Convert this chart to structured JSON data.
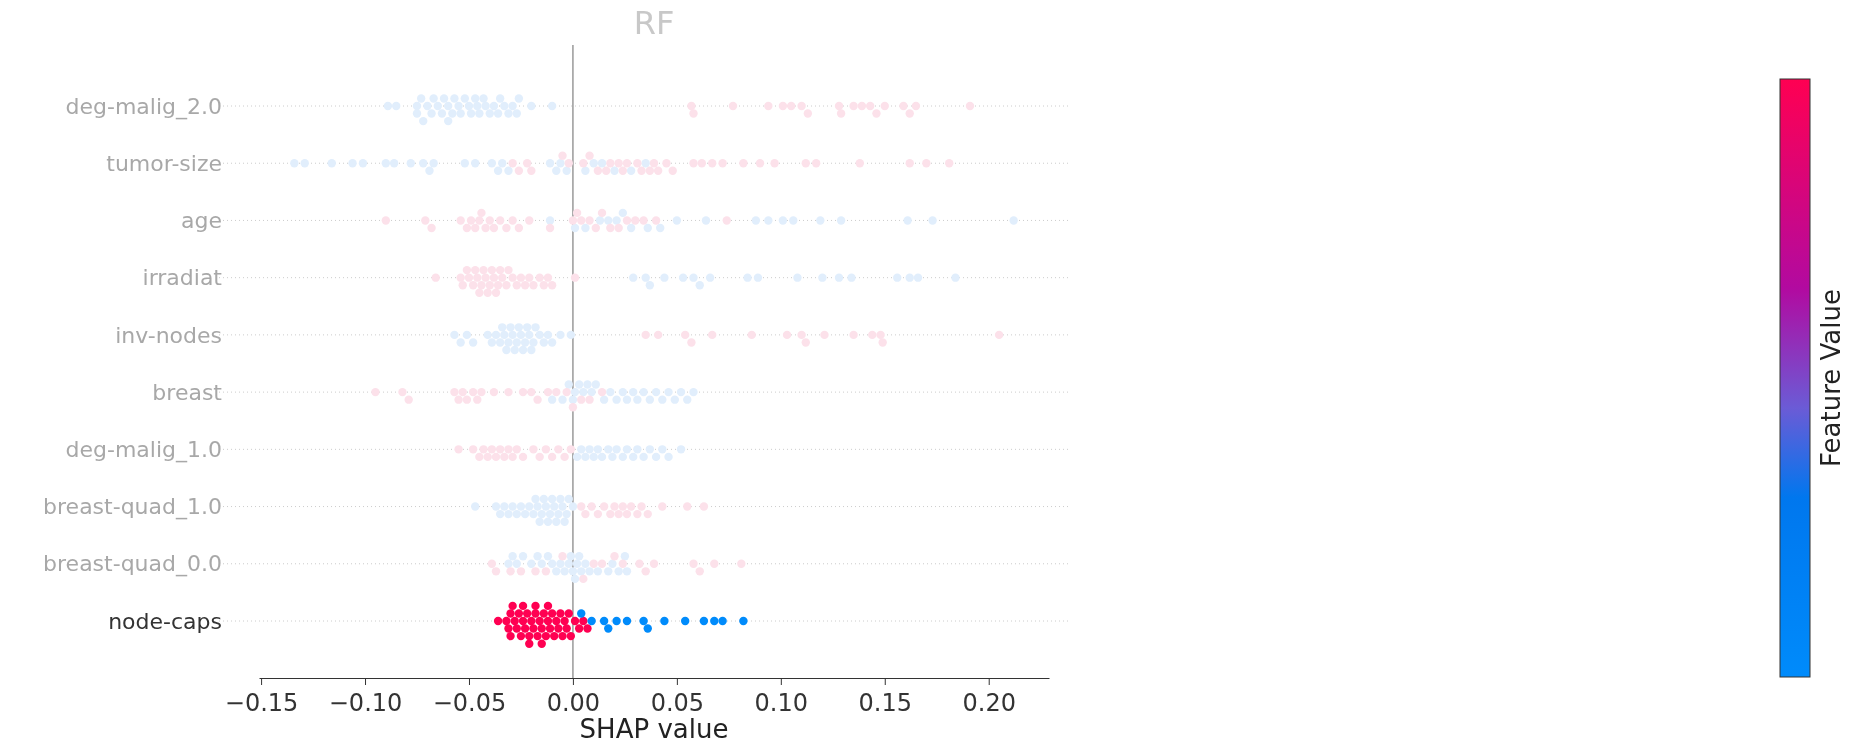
{
  "chart_data": {
    "type": "scatter",
    "orientation": "horizontal",
    "title": "RF",
    "xlabel": "SHAP value",
    "clabel": "Feature Value",
    "categories": [
      "deg-malig_2.0",
      "tumor-size",
      "age",
      "irradiat",
      "inv-nodes",
      "breast",
      "deg-malig_1.0",
      "breast-quad_1.0",
      "breast-quad_0.0",
      "node-caps"
    ],
    "xlim": [
      -0.151,
      0.229
    ],
    "xticks": [
      {
        "value": -0.15,
        "label": "−0.15"
      },
      {
        "value": -0.1,
        "label": "−0.10"
      },
      {
        "value": -0.05,
        "label": "−0.05"
      },
      {
        "value": 0,
        "label": "0.00"
      },
      {
        "value": 0.05,
        "label": "0.05"
      },
      {
        "value": 0.1,
        "label": "0.10"
      },
      {
        "value": 0.15,
        "label": "0.15"
      },
      {
        "value": 0.2,
        "label": "0.20"
      }
    ],
    "grid": "y",
    "marker": "circle",
    "ref_lines": [
      {
        "axis": "x",
        "value": 0,
        "color": "#999999"
      }
    ],
    "series": [
      {
        "color": "#e1eefc",
        "x": [
          "deg-malig_2.0",
          "deg-malig_2.0",
          "deg-malig_2.0",
          "deg-malig_2.0",
          "deg-malig_2.0",
          "deg-malig_2.0",
          "deg-malig_2.0",
          "deg-malig_2.0",
          "deg-malig_2.0",
          "deg-malig_2.0",
          "deg-malig_2.0",
          "deg-malig_2.0",
          "deg-malig_2.0",
          "deg-malig_2.0",
          "deg-malig_2.0",
          "deg-malig_2.0",
          "deg-malig_2.0",
          "deg-malig_2.0",
          "deg-malig_2.0",
          "deg-malig_2.0",
          "deg-malig_2.0",
          "deg-malig_2.0",
          "deg-malig_2.0",
          "deg-malig_2.0",
          "deg-malig_2.0",
          "deg-malig_2.0",
          "deg-malig_2.0",
          "deg-malig_2.0",
          "deg-malig_2.0",
          "deg-malig_2.0",
          "deg-malig_2.0",
          "deg-malig_2.0",
          "deg-malig_2.0",
          "deg-malig_2.0",
          "deg-malig_2.0",
          "deg-malig_2.0",
          "deg-malig_2.0"
        ],
        "values": [
          -0.089,
          -0.085,
          -0.075,
          -0.075,
          -0.073,
          -0.072,
          -0.07,
          -0.068,
          -0.067,
          -0.065,
          -0.063,
          -0.062,
          -0.06,
          -0.06,
          -0.058,
          -0.057,
          -0.055,
          -0.054,
          -0.052,
          -0.05,
          -0.049,
          -0.047,
          -0.046,
          -0.045,
          -0.043,
          -0.042,
          -0.04,
          -0.038,
          -0.036,
          -0.035,
          -0.033,
          -0.031,
          -0.029,
          -0.027,
          -0.026,
          -0.02,
          -0.01
        ]
      },
      {
        "color": "#fce1ea",
        "x": [
          "deg-malig_2.0",
          "deg-malig_2.0",
          "deg-malig_2.0",
          "deg-malig_2.0",
          "deg-malig_2.0",
          "deg-malig_2.0",
          "deg-malig_2.0",
          "deg-malig_2.0",
          "deg-malig_2.0",
          "deg-malig_2.0",
          "deg-malig_2.0",
          "deg-malig_2.0",
          "deg-malig_2.0",
          "deg-malig_2.0",
          "deg-malig_2.0",
          "deg-malig_2.0",
          "deg-malig_2.0",
          "deg-malig_2.0",
          "deg-malig_2.0"
        ],
        "values": [
          0.057,
          0.058,
          0.077,
          0.094,
          0.101,
          0.105,
          0.11,
          0.113,
          0.128,
          0.129,
          0.135,
          0.139,
          0.143,
          0.146,
          0.15,
          0.159,
          0.162,
          0.165,
          0.191
        ]
      },
      {
        "color": "#e1eefc",
        "x": [
          "tumor-size",
          "tumor-size",
          "tumor-size",
          "tumor-size",
          "tumor-size",
          "tumor-size",
          "tumor-size",
          "tumor-size",
          "tumor-size",
          "tumor-size",
          "tumor-size",
          "tumor-size",
          "tumor-size",
          "tumor-size",
          "tumor-size",
          "tumor-size",
          "tumor-size",
          "tumor-size",
          "tumor-size",
          "tumor-size",
          "tumor-size",
          "tumor-size",
          "tumor-size",
          "tumor-size",
          "tumor-size",
          "tumor-size",
          "tumor-size"
        ],
        "values": [
          -0.134,
          -0.129,
          -0.116,
          -0.106,
          -0.101,
          -0.09,
          -0.086,
          -0.078,
          -0.072,
          -0.069,
          -0.067,
          -0.052,
          -0.047,
          -0.039,
          -0.036,
          -0.034,
          -0.031,
          -0.011,
          -0.008,
          -0.006,
          -0.003,
          0.006,
          0.01,
          0.014,
          0.02,
          0.028,
          0.035
        ]
      },
      {
        "color": "#fce1ea",
        "x": [
          "tumor-size",
          "tumor-size",
          "tumor-size",
          "tumor-size",
          "tumor-size",
          "tumor-size",
          "tumor-size",
          "tumor-size",
          "tumor-size",
          "tumor-size",
          "tumor-size",
          "tumor-size",
          "tumor-size",
          "tumor-size",
          "tumor-size",
          "tumor-size",
          "tumor-size",
          "tumor-size",
          "tumor-size",
          "tumor-size",
          "tumor-size",
          "tumor-size",
          "tumor-size",
          "tumor-size",
          "tumor-size",
          "tumor-size",
          "tumor-size",
          "tumor-size",
          "tumor-size",
          "tumor-size",
          "tumor-size",
          "tumor-size",
          "tumor-size",
          "tumor-size"
        ],
        "values": [
          -0.029,
          -0.026,
          -0.022,
          -0.02,
          -0.005,
          -0.002,
          0.005,
          0.008,
          0.012,
          0.016,
          0.018,
          0.022,
          0.024,
          0.026,
          0.031,
          0.033,
          0.037,
          0.039,
          0.041,
          0.045,
          0.048,
          0.058,
          0.062,
          0.067,
          0.072,
          0.082,
          0.09,
          0.097,
          0.112,
          0.117,
          0.138,
          0.162,
          0.17,
          0.181
        ]
      },
      {
        "color": "#e1eefc",
        "x": [
          "age",
          "age",
          "age",
          "age",
          "age",
          "age",
          "age",
          "age",
          "age",
          "age",
          "age",
          "age",
          "age",
          "age",
          "age",
          "age",
          "age",
          "age",
          "age",
          "age",
          "age"
        ],
        "values": [
          -0.011,
          0.001,
          0.006,
          0.013,
          0.017,
          0.021,
          0.024,
          0.028,
          0.036,
          0.042,
          0.05,
          0.064,
          0.088,
          0.094,
          0.101,
          0.106,
          0.119,
          0.129,
          0.161,
          0.173,
          0.212
        ]
      },
      {
        "color": "#fce1ea",
        "x": [
          "age",
          "age",
          "age",
          "age",
          "age",
          "age",
          "age",
          "age",
          "age",
          "age",
          "age",
          "age",
          "age",
          "age",
          "age",
          "age",
          "age",
          "age",
          "age",
          "age",
          "age",
          "age",
          "age",
          "age",
          "age",
          "age",
          "age",
          "age",
          "age",
          "age",
          "age"
        ],
        "values": [
          -0.09,
          -0.071,
          -0.068,
          -0.054,
          -0.051,
          -0.049,
          -0.047,
          -0.045,
          -0.044,
          -0.042,
          -0.04,
          -0.038,
          -0.035,
          -0.032,
          -0.029,
          -0.026,
          -0.021,
          -0.011,
          0.0,
          0.002,
          0.004,
          0.008,
          0.011,
          0.014,
          0.018,
          0.022,
          0.026,
          0.03,
          0.034,
          0.04,
          0.074
        ]
      },
      {
        "color": "#e1eefc",
        "x": [
          "irradiat",
          "irradiat",
          "irradiat",
          "irradiat",
          "irradiat",
          "irradiat",
          "irradiat",
          "irradiat",
          "irradiat",
          "irradiat",
          "irradiat",
          "irradiat",
          "irradiat",
          "irradiat",
          "irradiat",
          "irradiat",
          "irradiat",
          "irradiat"
        ],
        "values": [
          0.029,
          0.035,
          0.037,
          0.044,
          0.053,
          0.058,
          0.061,
          0.066,
          0.084,
          0.089,
          0.108,
          0.12,
          0.128,
          0.134,
          0.156,
          0.162,
          0.166,
          0.184
        ]
      },
      {
        "color": "#fce1ea",
        "x": [
          "irradiat",
          "irradiat",
          "irradiat",
          "irradiat",
          "irradiat",
          "irradiat",
          "irradiat",
          "irradiat",
          "irradiat",
          "irradiat",
          "irradiat",
          "irradiat",
          "irradiat",
          "irradiat",
          "irradiat",
          "irradiat",
          "irradiat",
          "irradiat",
          "irradiat",
          "irradiat",
          "irradiat",
          "irradiat",
          "irradiat",
          "irradiat",
          "irradiat",
          "irradiat",
          "irradiat",
          "irradiat",
          "irradiat",
          "irradiat",
          "irradiat",
          "irradiat",
          "irradiat"
        ],
        "values": [
          -0.066,
          -0.054,
          -0.053,
          -0.051,
          -0.05,
          -0.048,
          -0.047,
          -0.046,
          -0.045,
          -0.044,
          -0.043,
          -0.042,
          -0.041,
          -0.04,
          -0.039,
          -0.038,
          -0.037,
          -0.036,
          -0.035,
          -0.034,
          -0.032,
          -0.031,
          -0.029,
          -0.027,
          -0.025,
          -0.023,
          -0.021,
          -0.019,
          -0.016,
          -0.014,
          -0.012,
          -0.01,
          0.001
        ]
      },
      {
        "color": "#e1eefc",
        "x": [
          "inv-nodes",
          "inv-nodes",
          "inv-nodes",
          "inv-nodes",
          "inv-nodes",
          "inv-nodes",
          "inv-nodes",
          "inv-nodes",
          "inv-nodes",
          "inv-nodes",
          "inv-nodes",
          "inv-nodes",
          "inv-nodes",
          "inv-nodes",
          "inv-nodes",
          "inv-nodes",
          "inv-nodes",
          "inv-nodes",
          "inv-nodes",
          "inv-nodes",
          "inv-nodes",
          "inv-nodes",
          "inv-nodes",
          "inv-nodes",
          "inv-nodes",
          "inv-nodes",
          "inv-nodes",
          "inv-nodes",
          "inv-nodes",
          "inv-nodes",
          "inv-nodes"
        ],
        "values": [
          -0.057,
          -0.054,
          -0.051,
          -0.048,
          -0.041,
          -0.039,
          -0.037,
          -0.035,
          -0.034,
          -0.033,
          -0.032,
          -0.031,
          -0.03,
          -0.029,
          -0.028,
          -0.027,
          -0.026,
          -0.025,
          -0.024,
          -0.023,
          -0.022,
          -0.021,
          -0.02,
          -0.019,
          -0.018,
          -0.016,
          -0.014,
          -0.012,
          -0.01,
          -0.006,
          -0.001
        ]
      },
      {
        "color": "#fce1ea",
        "x": [
          "inv-nodes",
          "inv-nodes",
          "inv-nodes",
          "inv-nodes",
          "inv-nodes",
          "inv-nodes",
          "inv-nodes",
          "inv-nodes",
          "inv-nodes",
          "inv-nodes",
          "inv-nodes",
          "inv-nodes",
          "inv-nodes",
          "inv-nodes",
          "inv-nodes"
        ],
        "values": [
          0.035,
          0.041,
          0.054,
          0.057,
          0.067,
          0.086,
          0.103,
          0.11,
          0.112,
          0.121,
          0.135,
          0.144,
          0.148,
          0.149,
          0.205
        ]
      },
      {
        "color": "#e1eefc",
        "x": [
          "breast",
          "breast",
          "breast",
          "breast",
          "breast",
          "breast",
          "breast",
          "breast",
          "breast",
          "breast",
          "breast",
          "breast",
          "breast",
          "breast",
          "breast",
          "breast",
          "breast",
          "breast",
          "breast",
          "breast",
          "breast",
          "breast",
          "breast",
          "breast",
          "breast",
          "breast"
        ],
        "values": [
          -0.01,
          -0.005,
          -0.002,
          0.0,
          0.001,
          0.003,
          0.005,
          0.007,
          0.009,
          0.011,
          0.015,
          0.018,
          0.021,
          0.024,
          0.026,
          0.029,
          0.031,
          0.034,
          0.037,
          0.04,
          0.043,
          0.046,
          0.049,
          0.052,
          0.055,
          0.058
        ]
      },
      {
        "color": "#fce1ea",
        "x": [
          "breast",
          "breast",
          "breast",
          "breast",
          "breast",
          "breast",
          "breast",
          "breast",
          "breast",
          "breast",
          "breast",
          "breast",
          "breast",
          "breast",
          "breast",
          "breast",
          "breast",
          "breast",
          "breast",
          "breast",
          "breast",
          "breast"
        ],
        "values": [
          -0.095,
          -0.082,
          -0.079,
          -0.057,
          -0.055,
          -0.053,
          -0.051,
          -0.048,
          -0.046,
          -0.044,
          -0.038,
          -0.031,
          -0.024,
          -0.02,
          -0.017,
          -0.012,
          -0.008,
          -0.003,
          0.0,
          0.004,
          0.008,
          0.014
        ]
      },
      {
        "color": "#e1eefc",
        "x": [
          "deg-malig_1.0",
          "deg-malig_1.0",
          "deg-malig_1.0",
          "deg-malig_1.0",
          "deg-malig_1.0",
          "deg-malig_1.0",
          "deg-malig_1.0",
          "deg-malig_1.0",
          "deg-malig_1.0",
          "deg-malig_1.0",
          "deg-malig_1.0",
          "deg-malig_1.0",
          "deg-malig_1.0",
          "deg-malig_1.0",
          "deg-malig_1.0",
          "deg-malig_1.0",
          "deg-malig_1.0",
          "deg-malig_1.0",
          "deg-malig_1.0",
          "deg-malig_1.0"
        ],
        "values": [
          0.002,
          0.004,
          0.006,
          0.008,
          0.01,
          0.012,
          0.014,
          0.017,
          0.019,
          0.021,
          0.024,
          0.026,
          0.029,
          0.031,
          0.034,
          0.037,
          0.04,
          0.043,
          0.046,
          0.052
        ]
      },
      {
        "color": "#fce1ea",
        "x": [
          "deg-malig_1.0",
          "deg-malig_1.0",
          "deg-malig_1.0",
          "deg-malig_1.0",
          "deg-malig_1.0",
          "deg-malig_1.0",
          "deg-malig_1.0",
          "deg-malig_1.0",
          "deg-malig_1.0",
          "deg-malig_1.0",
          "deg-malig_1.0",
          "deg-malig_1.0",
          "deg-malig_1.0",
          "deg-malig_1.0",
          "deg-malig_1.0",
          "deg-malig_1.0",
          "deg-malig_1.0",
          "deg-malig_1.0",
          "deg-malig_1.0",
          "deg-malig_1.0"
        ],
        "values": [
          -0.055,
          -0.048,
          -0.045,
          -0.043,
          -0.041,
          -0.039,
          -0.037,
          -0.035,
          -0.033,
          -0.031,
          -0.029,
          -0.027,
          -0.024,
          -0.019,
          -0.016,
          -0.013,
          -0.01,
          -0.007,
          -0.004,
          -0.001
        ]
      },
      {
        "color": "#e1eefc",
        "x": [
          "breast-quad_1.0",
          "breast-quad_1.0",
          "breast-quad_1.0",
          "breast-quad_1.0",
          "breast-quad_1.0",
          "breast-quad_1.0",
          "breast-quad_1.0",
          "breast-quad_1.0",
          "breast-quad_1.0",
          "breast-quad_1.0",
          "breast-quad_1.0",
          "breast-quad_1.0",
          "breast-quad_1.0",
          "breast-quad_1.0",
          "breast-quad_1.0",
          "breast-quad_1.0",
          "breast-quad_1.0",
          "breast-quad_1.0",
          "breast-quad_1.0",
          "breast-quad_1.0",
          "breast-quad_1.0",
          "breast-quad_1.0",
          "breast-quad_1.0",
          "breast-quad_1.0",
          "breast-quad_1.0",
          "breast-quad_1.0",
          "breast-quad_1.0",
          "breast-quad_1.0",
          "breast-quad_1.0"
        ],
        "values": [
          -0.047,
          -0.037,
          -0.035,
          -0.033,
          -0.031,
          -0.029,
          -0.027,
          -0.025,
          -0.023,
          -0.021,
          -0.019,
          -0.018,
          -0.017,
          -0.016,
          -0.015,
          -0.014,
          -0.013,
          -0.012,
          -0.011,
          -0.01,
          -0.009,
          -0.008,
          -0.007,
          -0.006,
          -0.005,
          -0.004,
          -0.003,
          -0.002,
          0.0
        ]
      },
      {
        "color": "#fce1ea",
        "x": [
          "breast-quad_1.0",
          "breast-quad_1.0",
          "breast-quad_1.0",
          "breast-quad_1.0",
          "breast-quad_1.0",
          "breast-quad_1.0",
          "breast-quad_1.0",
          "breast-quad_1.0",
          "breast-quad_1.0",
          "breast-quad_1.0",
          "breast-quad_1.0",
          "breast-quad_1.0",
          "breast-quad_1.0",
          "breast-quad_1.0",
          "breast-quad_1.0",
          "breast-quad_1.0",
          "breast-quad_1.0"
        ],
        "values": [
          0.004,
          0.006,
          0.009,
          0.012,
          0.015,
          0.018,
          0.02,
          0.022,
          0.024,
          0.026,
          0.028,
          0.031,
          0.033,
          0.036,
          0.043,
          0.055,
          0.063
        ]
      },
      {
        "color": "#e1eefc",
        "x": [
          "breast-quad_0.0",
          "breast-quad_0.0",
          "breast-quad_0.0",
          "breast-quad_0.0",
          "breast-quad_0.0",
          "breast-quad_0.0",
          "breast-quad_0.0",
          "breast-quad_0.0",
          "breast-quad_0.0",
          "breast-quad_0.0",
          "breast-quad_0.0",
          "breast-quad_0.0",
          "breast-quad_0.0",
          "breast-quad_0.0",
          "breast-quad_0.0",
          "breast-quad_0.0",
          "breast-quad_0.0",
          "breast-quad_0.0",
          "breast-quad_0.0",
          "breast-quad_0.0",
          "breast-quad_0.0",
          "breast-quad_0.0",
          "breast-quad_0.0",
          "breast-quad_0.0",
          "breast-quad_0.0",
          "breast-quad_0.0",
          "breast-quad_0.0"
        ],
        "values": [
          -0.031,
          -0.029,
          -0.027,
          -0.024,
          -0.02,
          -0.017,
          -0.015,
          -0.012,
          -0.01,
          -0.008,
          -0.006,
          -0.004,
          -0.002,
          -0.001,
          0.0,
          0.001,
          0.002,
          0.003,
          0.004,
          0.006,
          0.008,
          0.012,
          0.017,
          0.019,
          0.022,
          0.025,
          0.026
        ]
      },
      {
        "color": "#fce1ea",
        "x": [
          "breast-quad_0.0",
          "breast-quad_0.0",
          "breast-quad_0.0",
          "breast-quad_0.0",
          "breast-quad_0.0",
          "breast-quad_0.0",
          "breast-quad_0.0",
          "breast-quad_0.0",
          "breast-quad_0.0",
          "breast-quad_0.0",
          "breast-quad_0.0",
          "breast-quad_0.0",
          "breast-quad_0.0",
          "breast-quad_0.0",
          "breast-quad_0.0",
          "breast-quad_0.0",
          "breast-quad_0.0",
          "breast-quad_0.0",
          "breast-quad_0.0"
        ],
        "values": [
          -0.039,
          -0.037,
          -0.03,
          -0.025,
          -0.018,
          -0.013,
          -0.005,
          0.005,
          0.01,
          0.014,
          0.02,
          0.024,
          0.032,
          0.035,
          0.039,
          0.058,
          0.061,
          0.068,
          0.081
        ]
      },
      {
        "color": "#ff0052",
        "x": [
          "node-caps",
          "node-caps",
          "node-caps",
          "node-caps",
          "node-caps",
          "node-caps",
          "node-caps",
          "node-caps",
          "node-caps",
          "node-caps",
          "node-caps",
          "node-caps",
          "node-caps",
          "node-caps",
          "node-caps",
          "node-caps",
          "node-caps",
          "node-caps",
          "node-caps",
          "node-caps",
          "node-caps",
          "node-caps",
          "node-caps",
          "node-caps",
          "node-caps",
          "node-caps",
          "node-caps",
          "node-caps",
          "node-caps",
          "node-caps",
          "node-caps",
          "node-caps",
          "node-caps",
          "node-caps",
          "node-caps",
          "node-caps",
          "node-caps",
          "node-caps",
          "node-caps",
          "node-caps",
          "node-caps",
          "node-caps",
          "node-caps"
        ],
        "values": [
          -0.036,
          -0.032,
          -0.031,
          -0.03,
          -0.03,
          -0.029,
          -0.028,
          -0.027,
          -0.026,
          -0.025,
          -0.024,
          -0.024,
          -0.023,
          -0.022,
          -0.021,
          -0.021,
          -0.02,
          -0.019,
          -0.018,
          -0.018,
          -0.017,
          -0.016,
          -0.015,
          -0.015,
          -0.014,
          -0.013,
          -0.012,
          -0.012,
          -0.011,
          -0.01,
          -0.009,
          -0.008,
          -0.007,
          -0.006,
          -0.005,
          -0.004,
          -0.003,
          -0.002,
          -0.001,
          0.001,
          0.003,
          0.005,
          0.007
        ]
      },
      {
        "color": "#008bfb",
        "x": [
          "node-caps",
          "node-caps",
          "node-caps",
          "node-caps",
          "node-caps",
          "node-caps",
          "node-caps",
          "node-caps",
          "node-caps",
          "node-caps",
          "node-caps",
          "node-caps",
          "node-caps",
          "node-caps"
        ],
        "values": [
          0.004,
          0.009,
          0.015,
          0.017,
          0.021,
          0.026,
          0.034,
          0.036,
          0.044,
          0.054,
          0.063,
          0.068,
          0.072,
          0.082
        ]
      }
    ]
  }
}
